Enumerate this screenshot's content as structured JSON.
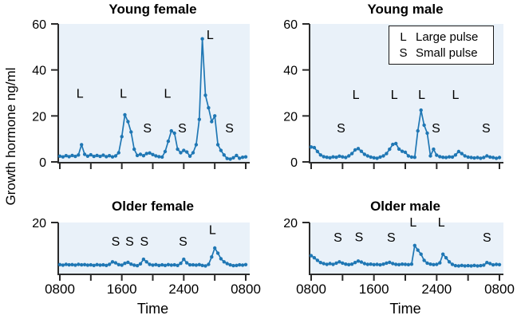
{
  "figure": {
    "y_axis_label": "Growth hormone ng/ml",
    "x_axis_label": "Time",
    "legend": {
      "items": [
        {
          "symbol": "L",
          "label": "Large pulse"
        },
        {
          "symbol": "S",
          "label": "Small pulse"
        }
      ]
    },
    "colors": {
      "line": "#1f77b4",
      "plot_bg": "#e9f1f9",
      "axis": "#2b2b2b",
      "text": "#000000"
    }
  },
  "chart_data": [
    {
      "type": "line",
      "title": "Young female",
      "x_ticks": [
        8,
        12,
        16,
        20,
        24,
        28,
        32
      ],
      "x_tick_labels": [
        "0800",
        "",
        "1600",
        "",
        "2400",
        "",
        "0800"
      ],
      "show_x_tick_labels": false,
      "ylim": [
        0,
        60
      ],
      "y_ticks": [
        0,
        20,
        40,
        60
      ],
      "y_tick_labels": [
        "0",
        "20",
        "40",
        "60"
      ],
      "t0": 8,
      "dt": 0.4,
      "values": [
        2.5,
        2.2,
        2.7,
        2.3,
        2.8,
        2.4,
        3.0,
        7.5,
        3.3,
        2.5,
        3.1,
        2.4,
        2.8,
        2.4,
        2.9,
        2.3,
        2.7,
        2.2,
        2.6,
        4.0,
        11.0,
        20.5,
        17.5,
        13.0,
        5.5,
        2.8,
        3.3,
        2.7,
        3.6,
        3.9,
        3.2,
        2.6,
        2.3,
        2.1,
        4.5,
        9.0,
        13.5,
        12.5,
        5.5,
        4.0,
        5.0,
        4.3,
        2.5,
        4.0,
        7.5,
        18.5,
        53.5,
        29.0,
        23.5,
        17.5,
        20.0,
        7.5,
        5.0,
        3.0,
        1.5,
        1.2,
        1.8,
        2.8,
        1.6,
        2.0,
        2.2
      ],
      "annotations": [
        {
          "text": "L",
          "t": 10.6,
          "v": 30
        },
        {
          "text": "L",
          "t": 16.2,
          "v": 30
        },
        {
          "text": "S",
          "t": 19.3,
          "v": 15
        },
        {
          "text": "L",
          "t": 21.9,
          "v": 30
        },
        {
          "text": "S",
          "t": 23.8,
          "v": 15
        },
        {
          "text": "L",
          "t": 27.4,
          "v": 55.5
        },
        {
          "text": "S",
          "t": 29.9,
          "v": 15
        }
      ]
    },
    {
      "type": "line",
      "title": "Young male",
      "x_ticks": [
        8,
        12,
        16,
        20,
        24,
        28,
        32
      ],
      "x_tick_labels": [
        "0800",
        "",
        "1600",
        "",
        "2400",
        "",
        "0800"
      ],
      "show_x_tick_labels": false,
      "ylim": [
        0,
        60
      ],
      "y_ticks": [
        0,
        20,
        40,
        60
      ],
      "y_tick_labels": [
        "0",
        "20",
        "40",
        "60"
      ],
      "t0": 8,
      "dt": 0.4,
      "values": [
        6.5,
        6.2,
        4.5,
        3.0,
        2.3,
        2.0,
        1.8,
        2.2,
        2.0,
        2.5,
        2.2,
        1.9,
        2.6,
        3.6,
        5.2,
        5.8,
        4.6,
        3.3,
        2.6,
        2.1,
        1.8,
        1.6,
        2.1,
        2.6,
        3.6,
        5.5,
        7.6,
        8.0,
        5.6,
        4.6,
        4.2,
        2.6,
        2.1,
        2.0,
        13.5,
        22.5,
        16.0,
        12.5,
        2.6,
        5.5,
        2.9,
        2.3,
        2.0,
        1.9,
        2.2,
        2.1,
        3.0,
        4.5,
        3.6,
        2.6,
        2.1,
        1.9,
        1.7,
        1.9,
        1.6,
        1.9,
        2.6,
        2.1,
        1.9,
        1.6,
        1.9
      ],
      "annotations": [
        {
          "text": "S",
          "t": 11.8,
          "v": 15
        },
        {
          "text": "L",
          "t": 13.7,
          "v": 29.5
        },
        {
          "text": "L",
          "t": 18.6,
          "v": 29.5
        },
        {
          "text": "L",
          "t": 22.1,
          "v": 29.5
        },
        {
          "text": "S",
          "t": 23.9,
          "v": 15
        },
        {
          "text": "L",
          "t": 26.4,
          "v": 29.5
        },
        {
          "text": "S",
          "t": 30.3,
          "v": 15
        }
      ]
    },
    {
      "type": "line",
      "title": "Older female",
      "x_ticks": [
        8,
        12,
        16,
        20,
        24,
        28,
        32
      ],
      "x_tick_labels": [
        "0800",
        "",
        "1600",
        "",
        "2400",
        "",
        "0800"
      ],
      "show_x_tick_labels": true,
      "ylim": [
        0,
        20
      ],
      "y_ticks": [
        20
      ],
      "y_tick_labels": [
        "20"
      ],
      "t0": 8,
      "dt": 0.4,
      "values": [
        3.5,
        3.3,
        3.6,
        3.4,
        3.5,
        3.3,
        3.6,
        3.4,
        3.5,
        3.3,
        3.4,
        3.2,
        3.5,
        3.3,
        3.4,
        3.2,
        3.6,
        4.6,
        4.2,
        3.5,
        3.3,
        4.0,
        4.4,
        3.7,
        3.3,
        3.1,
        3.8,
        5.6,
        4.6,
        3.6,
        3.3,
        3.5,
        3.2,
        3.4,
        3.2,
        3.5,
        3.3,
        3.4,
        3.2,
        4.0,
        5.6,
        4.2,
        3.4,
        3.4,
        3.3,
        3.5,
        3.2,
        3.0,
        3.6,
        6.5,
        10.0,
        8.0,
        5.8,
        4.6,
        3.9,
        3.4,
        3.1,
        3.2,
        3.4,
        3.3,
        3.5
      ],
      "annotations": [
        {
          "text": "S",
          "t": 15.2,
          "v": 12.8
        },
        {
          "text": "S",
          "t": 17.0,
          "v": 12.8
        },
        {
          "text": "S",
          "t": 18.9,
          "v": 12.8
        },
        {
          "text": "S",
          "t": 23.9,
          "v": 12.8
        },
        {
          "text": "L",
          "t": 27.7,
          "v": 17.3
        }
      ]
    },
    {
      "type": "line",
      "title": "Older male",
      "x_ticks": [
        8,
        12,
        16,
        20,
        24,
        28,
        32
      ],
      "x_tick_labels": [
        "0800",
        "",
        "1600",
        "",
        "2400",
        "",
        "0800"
      ],
      "show_x_tick_labels": true,
      "ylim": [
        0,
        20
      ],
      "y_ticks": [
        20
      ],
      "y_tick_labels": [
        "20"
      ],
      "t0": 8,
      "dt": 0.4,
      "values": [
        7.0,
        6.2,
        5.2,
        4.3,
        3.9,
        3.6,
        3.9,
        3.6,
        4.1,
        4.6,
        4.1,
        3.7,
        3.5,
        3.7,
        4.3,
        4.9,
        4.5,
        3.9,
        3.6,
        3.7,
        3.5,
        3.6,
        3.4,
        3.7,
        4.1,
        4.4,
        3.9,
        3.6,
        3.5,
        3.7,
        3.6,
        3.5,
        3.7,
        11.0,
        9.2,
        7.6,
        5.2,
        4.1,
        3.7,
        3.5,
        3.6,
        4.2,
        7.6,
        6.2,
        4.6,
        3.6,
        3.1,
        3.0,
        3.2,
        3.0,
        3.1,
        3.0,
        3.2,
        3.0,
        3.1,
        3.3,
        4.3,
        3.9,
        3.4,
        3.6,
        3.5
      ],
      "annotations": [
        {
          "text": "S",
          "t": 11.4,
          "v": 14.3
        },
        {
          "text": "S",
          "t": 14.1,
          "v": 14.6
        },
        {
          "text": "S",
          "t": 18.2,
          "v": 14.3
        },
        {
          "text": "L",
          "t": 21.0,
          "v": 20.3
        },
        {
          "text": "L",
          "t": 24.6,
          "v": 20.3
        },
        {
          "text": "S",
          "t": 30.4,
          "v": 14.3
        }
      ]
    }
  ]
}
